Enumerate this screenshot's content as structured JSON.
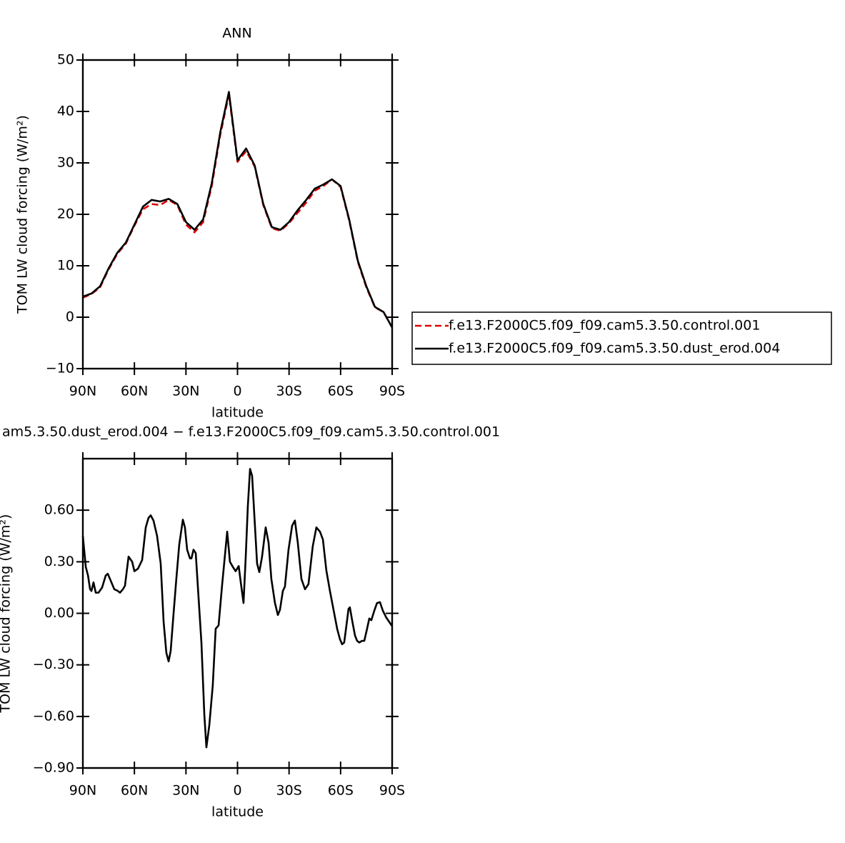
{
  "chart_data": [
    {
      "type": "line",
      "title": "ANN",
      "xlabel": "latitude",
      "ylabel": "TOM LW cloud forcing (W/m²)",
      "x": [
        90,
        85,
        80,
        75,
        70,
        65,
        60,
        55,
        50,
        45,
        40,
        35,
        30,
        25,
        20,
        15,
        10,
        5,
        0,
        -5,
        -10,
        -15,
        -20,
        -25,
        -30,
        -35,
        -40,
        -45,
        -50,
        -55,
        -60,
        -65,
        -70,
        -75,
        -80,
        -85,
        -90
      ],
      "series": [
        {
          "name": "f.e13.F2000C5.f09_f09.cam5.3.50.control.001",
          "color": "#e00000",
          "linestyle": "dashed",
          "values": [
            3.8,
            4.5,
            5.8,
            9.3,
            12.3,
            14.3,
            17.8,
            21,
            22,
            21.8,
            22.8,
            21.8,
            18,
            16.5,
            18.5,
            25.5,
            35.5,
            43.3,
            30.2,
            32.3,
            29.3,
            21.8,
            17.3,
            16.8,
            18.3,
            20.3,
            22.3,
            24.6,
            25.5,
            26.8,
            25.3,
            18.8,
            10.8,
            5.8,
            1.9,
            1,
            -2
          ]
        },
        {
          "name": "f.e13.F2000C5.f09_f09.cam5.3.50.dust_erod.004",
          "color": "#000000",
          "linestyle": "solid",
          "values": [
            4,
            4.6,
            6,
            9.5,
            12.5,
            14.5,
            18,
            21.5,
            22.8,
            22.5,
            23,
            22,
            18.5,
            17,
            19,
            26,
            36,
            43.8,
            30.5,
            32.8,
            29.5,
            22,
            17.5,
            17,
            18.5,
            20.8,
            22.8,
            25,
            25.8,
            26.8,
            25.5,
            19,
            11,
            6,
            2,
            1,
            -2
          ]
        }
      ],
      "xlim": [
        90,
        -90
      ],
      "xticks": [
        {
          "value": 90,
          "label": "90N"
        },
        {
          "value": 60,
          "label": "60N"
        },
        {
          "value": 30,
          "label": "30N"
        },
        0,
        {
          "value": -30,
          "label": "30S"
        },
        {
          "value": -60,
          "label": "60S"
        },
        {
          "value": -90,
          "label": "90S"
        }
      ],
      "ylim": [
        -10,
        50
      ],
      "yticks": [
        {
          "value": -10,
          "label": "−10"
        },
        0,
        10,
        20,
        30,
        40,
        50
      ],
      "legend": "outside-right"
    },
    {
      "type": "line",
      "title": "am5.3.50.dust_erod.004 − f.e13.F2000C5.f09_f09.cam5.3.50.control.001",
      "xlabel": "latitude",
      "ylabel": "TOM LW cloud forcing (W/m²)",
      "x": [
        90,
        88.3,
        87,
        85.8,
        85,
        83.8,
        82.5,
        80.9,
        78.8,
        76.7,
        75.5,
        73.8,
        71.7,
        69.6,
        68.4,
        66.7,
        65.5,
        63.4,
        61.3,
        60,
        57.9,
        55.5,
        53.4,
        51.8,
        50.5,
        48.9,
        46.8,
        44.7,
        43,
        41.4,
        40.1,
        38.9,
        37.2,
        35.6,
        33.9,
        31.8,
        30.6,
        29.3,
        27.7,
        26.8,
        25.6,
        24.3,
        23.1,
        21,
        19.3,
        18.1,
        16.4,
        14.4,
        12.7,
        11,
        9,
        6,
        4.4,
        2.7,
        1.1,
        -0.7,
        -1.9,
        -3.5,
        -4.8,
        -6,
        -7.3,
        -8.5,
        -10.2,
        -11.4,
        -12.7,
        -14.3,
        -16.4,
        -18.1,
        -19.7,
        -21.8,
        -23.5,
        -24.7,
        -26.4,
        -27.6,
        -29.7,
        -31.8,
        -33.4,
        -35.1,
        -37.2,
        -39.3,
        -41.3,
        -43.8,
        -45.9,
        -48,
        -49.7,
        -51.7,
        -53.8,
        -55.9,
        -58,
        -59.6,
        -60.9,
        -62.1,
        -63.4,
        -64.6,
        -65.4,
        -66.7,
        -68.4,
        -69.6,
        -70.9,
        -72.5,
        -73.8,
        -75.4,
        -76.7,
        -77.9,
        -79.6,
        -81.2,
        -82.9,
        -84.6,
        -86.6,
        -90
      ],
      "series": [
        {
          "color": "#000000",
          "linestyle": "solid",
          "values": [
            0.45,
            0.27,
            0.22,
            0.14,
            0.13,
            0.18,
            0.12,
            0.12,
            0.15,
            0.22,
            0.23,
            0.19,
            0.14,
            0.13,
            0.12,
            0.14,
            0.16,
            0.33,
            0.3,
            0.245,
            0.26,
            0.31,
            0.5,
            0.555,
            0.57,
            0.54,
            0.45,
            0.29,
            -0.05,
            -0.23,
            -0.28,
            -0.22,
            0,
            0.2,
            0.4,
            0.545,
            0.5,
            0.37,
            0.32,
            0.32,
            0.37,
            0.35,
            0.16,
            -0.17,
            -0.59,
            -0.78,
            -0.65,
            -0.42,
            -0.09,
            -0.07,
            0.16,
            0.475,
            0.3,
            0.27,
            0.245,
            0.275,
            0.18,
            0.06,
            0.33,
            0.62,
            0.84,
            0.8,
            0.5,
            0.29,
            0.24,
            0.33,
            0.5,
            0.41,
            0.2,
            0.06,
            -0.01,
            0.02,
            0.13,
            0.155,
            0.37,
            0.51,
            0.54,
            0.41,
            0.2,
            0.14,
            0.17,
            0.39,
            0.5,
            0.475,
            0.43,
            0.25,
            0.13,
            0.02,
            -0.09,
            -0.15,
            -0.18,
            -0.17,
            -0.07,
            0.025,
            0.035,
            -0.04,
            -0.13,
            -0.16,
            -0.17,
            -0.16,
            -0.16,
            -0.09,
            -0.03,
            -0.04,
            0.015,
            0.06,
            0.065,
            0.015,
            -0.025,
            -0.075
          ]
        }
      ],
      "xlim": [
        90,
        -90
      ],
      "xticks": [
        {
          "value": 90,
          "label": "90N"
        },
        {
          "value": 60,
          "label": "60N"
        },
        {
          "value": 30,
          "label": "30N"
        },
        0,
        {
          "value": -30,
          "label": "30S"
        },
        {
          "value": -60,
          "label": "60S"
        },
        {
          "value": -90,
          "label": "90S"
        }
      ],
      "ylim": [
        -0.9,
        0.9
      ],
      "yticks": [
        {
          "value": -0.9,
          "label": "−0.90"
        },
        {
          "value": -0.6,
          "label": "−0.60"
        },
        {
          "value": -0.3,
          "label": "−0.30"
        },
        {
          "value": 0,
          "label": "0.00"
        },
        {
          "value": 0.3,
          "label": "0.30"
        },
        {
          "value": 0.6,
          "label": "0.60"
        }
      ]
    }
  ]
}
